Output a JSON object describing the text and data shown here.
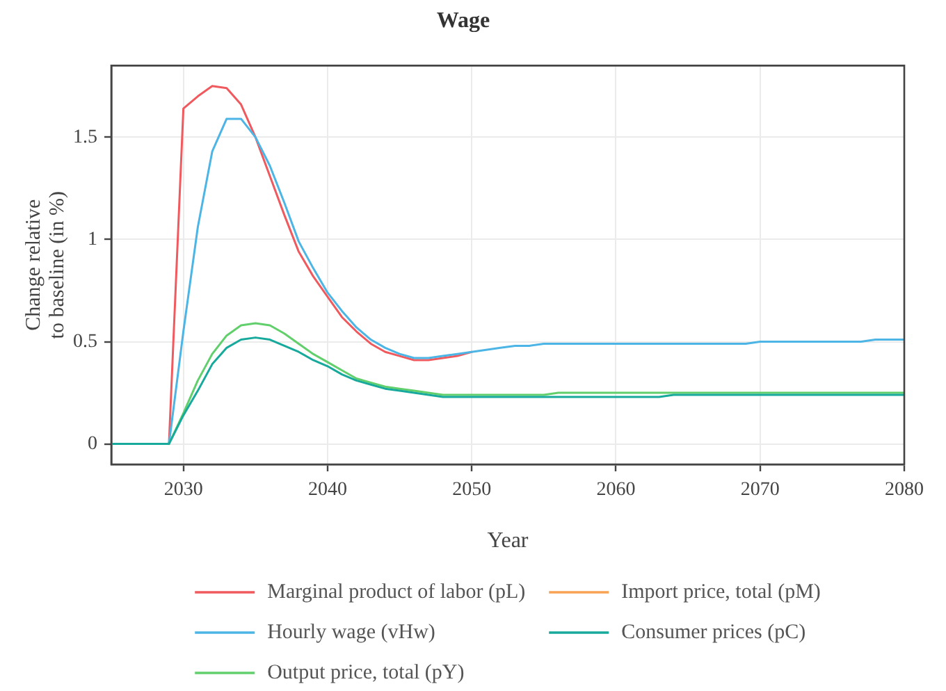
{
  "chart_data": {
    "type": "line",
    "title": "Wage",
    "xlabel": "Year",
    "ylabel": "Change relative\nto baseline (in %)",
    "x": [
      2025,
      2026,
      2027,
      2028,
      2029,
      2030,
      2031,
      2032,
      2033,
      2034,
      2035,
      2036,
      2037,
      2038,
      2039,
      2040,
      2041,
      2042,
      2043,
      2044,
      2045,
      2046,
      2047,
      2048,
      2049,
      2050,
      2051,
      2052,
      2053,
      2054,
      2055,
      2056,
      2057,
      2058,
      2059,
      2060,
      2061,
      2062,
      2063,
      2064,
      2065,
      2066,
      2067,
      2068,
      2069,
      2070,
      2071,
      2072,
      2073,
      2074,
      2075,
      2076,
      2077,
      2078,
      2079,
      2080
    ],
    "series": [
      {
        "name": "Marginal product of labor (pL)",
        "color": "#f05a5e",
        "values": [
          null,
          null,
          null,
          null,
          0,
          1.64,
          1.7,
          1.75,
          1.74,
          1.66,
          1.5,
          1.31,
          1.12,
          0.94,
          0.82,
          0.72,
          0.62,
          0.55,
          0.49,
          0.45,
          0.43,
          0.41,
          0.41,
          0.42,
          0.43,
          0.45,
          null,
          null,
          null,
          null,
          null,
          null,
          null,
          null,
          null,
          null,
          null,
          null,
          null,
          null,
          null,
          null,
          null,
          null,
          null,
          null,
          null,
          null,
          null,
          null,
          null,
          null,
          null,
          null,
          null,
          null
        ]
      },
      {
        "name": "Hourly wage (vHw)",
        "color": "#4cb5e5",
        "values": [
          null,
          null,
          null,
          null,
          0,
          0.55,
          1.06,
          1.43,
          1.59,
          1.59,
          1.5,
          1.36,
          1.18,
          0.99,
          0.86,
          0.74,
          0.65,
          0.57,
          0.51,
          0.47,
          0.44,
          0.42,
          0.42,
          0.43,
          0.44,
          0.45,
          0.46,
          0.47,
          0.48,
          0.48,
          0.49,
          0.49,
          0.49,
          0.49,
          0.49,
          0.49,
          0.49,
          0.49,
          0.49,
          0.49,
          0.49,
          0.49,
          0.49,
          0.49,
          0.49,
          0.5,
          0.5,
          0.5,
          0.5,
          0.5,
          0.5,
          0.5,
          0.5,
          0.51,
          0.51,
          0.51
        ]
      },
      {
        "name": "Output price, total (pY)",
        "color": "#61cf6b",
        "values": [
          null,
          null,
          null,
          null,
          0,
          0.15,
          0.31,
          0.44,
          0.53,
          0.58,
          0.59,
          0.58,
          0.54,
          0.49,
          0.44,
          0.4,
          0.36,
          0.32,
          0.3,
          0.28,
          0.27,
          0.26,
          0.25,
          0.24,
          0.24,
          0.24,
          0.24,
          0.24,
          0.24,
          0.24,
          0.24,
          0.25,
          0.25,
          0.25,
          0.25,
          0.25,
          0.25,
          0.25,
          0.25,
          0.25,
          0.25,
          0.25,
          0.25,
          0.25,
          0.25,
          0.25,
          0.25,
          0.25,
          0.25,
          0.25,
          0.25,
          0.25,
          0.25,
          0.25,
          0.25,
          0.25
        ]
      },
      {
        "name": "Import price, total (pM)",
        "color": "#f8a253",
        "values": [
          null,
          null,
          null,
          null,
          null,
          null,
          null,
          null,
          null,
          null,
          null,
          null,
          null,
          null,
          null,
          null,
          null,
          null,
          null,
          null,
          null,
          null,
          null,
          null,
          null,
          null,
          null,
          null,
          null,
          null,
          null,
          null,
          null,
          null,
          null,
          null,
          null,
          null,
          null,
          null,
          null,
          null,
          null,
          null,
          null,
          null,
          null,
          null,
          null,
          null,
          null,
          null,
          null,
          null,
          null,
          null
        ]
      },
      {
        "name": "Consumer prices (pC)",
        "color": "#17a99b",
        "values": [
          0,
          0,
          0,
          0,
          0,
          0.14,
          0.26,
          0.39,
          0.47,
          0.51,
          0.52,
          0.51,
          0.48,
          0.45,
          0.41,
          0.38,
          0.34,
          0.31,
          0.29,
          0.27,
          0.26,
          0.25,
          0.24,
          0.23,
          0.23,
          0.23,
          0.23,
          0.23,
          0.23,
          0.23,
          0.23,
          0.23,
          0.23,
          0.23,
          0.23,
          0.23,
          0.23,
          0.23,
          0.23,
          0.24,
          0.24,
          0.24,
          0.24,
          0.24,
          0.24,
          0.24,
          0.24,
          0.24,
          0.24,
          0.24,
          0.24,
          0.24,
          0.24,
          0.24,
          0.24,
          0.24
        ]
      }
    ],
    "xlim": [
      2025,
      2080
    ],
    "xticks": [
      2030,
      2040,
      2050,
      2060,
      2070,
      2080
    ],
    "ylim": [
      -0.1,
      1.85
    ],
    "yticks": [
      0,
      0.5,
      1,
      1.5
    ],
    "grid": true,
    "legend": "bottom"
  }
}
